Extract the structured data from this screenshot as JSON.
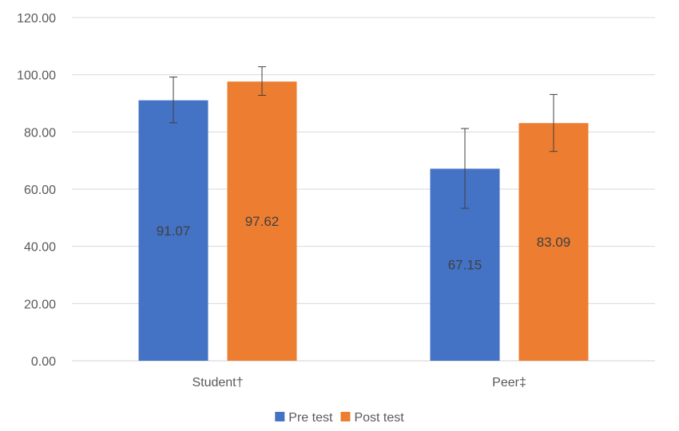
{
  "chart_data": {
    "type": "bar",
    "title": "",
    "xlabel": "",
    "ylabel": "",
    "categories": [
      "Student†",
      "Peer‡"
    ],
    "ylim": [
      0,
      120
    ],
    "yticks": [
      0,
      20,
      40,
      60,
      80,
      100,
      120
    ],
    "ytick_format_decimals": 2,
    "grid": true,
    "legend_position": "bottom",
    "series": [
      {
        "name": "Pre test",
        "color": "#4472C4",
        "values": [
          91.07,
          67.15
        ],
        "error_low": [
          83.2,
          53.3
        ],
        "error_high": [
          99.2,
          81.2
        ],
        "labels": [
          "91.07",
          "67.15"
        ]
      },
      {
        "name": "Post test",
        "color": "#ED7D31",
        "values": [
          97.62,
          83.09
        ],
        "error_low": [
          92.8,
          73.2
        ],
        "error_high": [
          102.8,
          93.1
        ],
        "labels": [
          "97.62",
          "83.09"
        ]
      }
    ]
  }
}
